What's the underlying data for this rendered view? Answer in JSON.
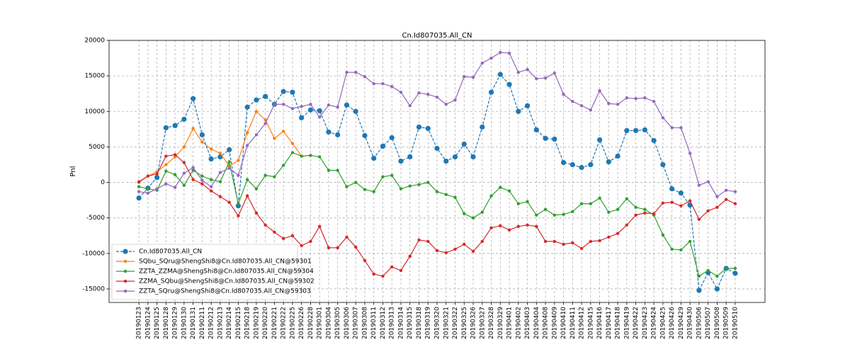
{
  "chart_data": {
    "type": "line",
    "title": "Cn.Id807035.All_CN",
    "y_label": "Pnl",
    "categories": [
      "20190123",
      "20190124",
      "20190125",
      "20190128",
      "20190129",
      "20190130",
      "20190131",
      "20190211",
      "20190212",
      "20190213",
      "20190214",
      "20190215",
      "20190218",
      "20190219",
      "20190220",
      "20190221",
      "20190222",
      "20190225",
      "20190226",
      "20190228",
      "20190301",
      "20190304",
      "20190305",
      "20190306",
      "20190307",
      "20190308",
      "20190311",
      "20190312",
      "20190313",
      "20190314",
      "20190315",
      "20190318",
      "20190319",
      "20190320",
      "20190321",
      "20190322",
      "20190325",
      "20190326",
      "20190327",
      "20190328",
      "20190329",
      "20190401",
      "20190402",
      "20190403",
      "20190404",
      "20190408",
      "20190409",
      "20190410",
      "20190411",
      "20190412",
      "20190415",
      "20190416",
      "20190417",
      "20190418",
      "20190419",
      "20190422",
      "20190423",
      "20190424",
      "20190425",
      "20190426",
      "20190429",
      "20190430",
      "20190506",
      "20190507",
      "20190508",
      "20190509",
      "20190510"
    ],
    "series": [
      {
        "name": "Cn.Id807035.All_CN",
        "color": "#1f77b4",
        "linestyle": "dashed",
        "values": [
          -2200,
          -800,
          700,
          7700,
          8000,
          8900,
          11800,
          6700,
          3300,
          3600,
          4600,
          -3300,
          10600,
          11600,
          12100,
          11000,
          12800,
          12700,
          9100,
          10200,
          10100,
          7100,
          6700,
          10900,
          10000,
          6600,
          3400,
          5100,
          6300,
          3000,
          3600,
          7800,
          7600,
          4800,
          3000,
          3600,
          5400,
          3600,
          7800,
          12700,
          15200,
          13800,
          10000,
          10800,
          7400,
          6200,
          6100,
          2800,
          2500,
          2100,
          2500,
          6000,
          2900,
          3700,
          7300,
          7300,
          7400,
          5900,
          2500,
          -900,
          -1500,
          -3200,
          -15200,
          -12700,
          -15000,
          -12100,
          -12800
        ]
      },
      {
        "name": "SQbu_SQru@ShengShi8@Cn.Id807035.All_CN@59301",
        "color": "#ff7f0e",
        "linestyle": "solid",
        "values": [
          0,
          900,
          1500,
          2500,
          3600,
          5000,
          7600,
          5700,
          4700,
          4100,
          2300,
          3100,
          7000,
          10000,
          8800,
          6200,
          7200,
          5500,
          3700,
          3800,
          null,
          null,
          null,
          null,
          null,
          null,
          null,
          null,
          null,
          null,
          null,
          null,
          null,
          null,
          null,
          null,
          null,
          null,
          null,
          null,
          null,
          null,
          null,
          null,
          null,
          null,
          null,
          null,
          null,
          null,
          null,
          null,
          null,
          null,
          null,
          null,
          null,
          null,
          null,
          null,
          null,
          null,
          null,
          null,
          null,
          null,
          null
        ]
      },
      {
        "name": "ZZTA_ZZMA@ShengShi8@Cn.Id807035.All_CN@59304",
        "color": "#2ca02c",
        "linestyle": "solid",
        "values": [
          -600,
          -900,
          -1100,
          1600,
          1100,
          -400,
          1700,
          900,
          400,
          100,
          2900,
          -3000,
          400,
          -900,
          1000,
          800,
          2400,
          4200,
          3700,
          3800,
          3600,
          1700,
          1700,
          -600,
          0,
          -1000,
          -1300,
          800,
          1000,
          -900,
          -500,
          -300,
          0,
          -1300,
          -1700,
          -2100,
          -4400,
          -5000,
          -4200,
          -1900,
          -700,
          -1200,
          -3000,
          -2700,
          -4600,
          -3800,
          -4600,
          -4500,
          -4100,
          -3000,
          -3000,
          -2200,
          -4200,
          -3800,
          -2300,
          -3500,
          -3800,
          -4600,
          -7400,
          -9400,
          -9500,
          -8300,
          -13200,
          -12400,
          -13200,
          -12100,
          -12100
        ]
      },
      {
        "name": "ZZMA_SQbu@ShengShi8@Cn.Id807035.All_CN@59302",
        "color": "#d62728",
        "linestyle": "solid",
        "values": [
          100,
          900,
          1200,
          3700,
          3900,
          2800,
          400,
          -200,
          -1200,
          -2000,
          -2800,
          -4700,
          -1900,
          -4300,
          -6000,
          -7000,
          -7900,
          -7500,
          -8900,
          -8300,
          -6200,
          -9200,
          -9200,
          -7700,
          -9100,
          -11000,
          -12900,
          -13200,
          -11900,
          -12400,
          -10400,
          -8100,
          -8300,
          -9600,
          -9900,
          -9400,
          -8700,
          -9700,
          -8300,
          -6400,
          -6100,
          -6700,
          -6200,
          -6000,
          -6200,
          -8300,
          -8300,
          -8700,
          -8500,
          -9300,
          -8300,
          -8200,
          -7700,
          -7200,
          -6000,
          -4600,
          -4300,
          -4400,
          -2900,
          -2800,
          -3300,
          -2600,
          -5200,
          -4000,
          -3500,
          -2400,
          -3000
        ]
      },
      {
        "name": "ZZTA_SQru@ShengShi8@Cn.Id807035.All_CN@59303",
        "color": "#9467bd",
        "linestyle": "solid",
        "values": [
          -1300,
          -1500,
          -900,
          -200,
          -700,
          1300,
          2100,
          300,
          -600,
          1400,
          2000,
          1000,
          5200,
          6700,
          8300,
          11000,
          11000,
          10400,
          10700,
          11000,
          9200,
          10900,
          10600,
          15500,
          15500,
          14900,
          13900,
          13900,
          13500,
          12700,
          10800,
          12600,
          12400,
          12000,
          11000,
          11600,
          14900,
          14800,
          16800,
          17500,
          18300,
          18200,
          15500,
          15900,
          14600,
          14700,
          15400,
          12400,
          11400,
          10800,
          10200,
          12900,
          11100,
          11000,
          11900,
          11800,
          11900,
          11400,
          9100,
          7700,
          7700,
          4100,
          -400,
          100,
          -2000,
          -1100,
          -1300
        ]
      }
    ],
    "ylim": [
      -16900,
      20000
    ],
    "yticks": [
      -15000,
      -10000,
      -5000,
      0,
      5000,
      10000,
      15000,
      20000
    ],
    "grid": true,
    "legend": "lower left"
  }
}
